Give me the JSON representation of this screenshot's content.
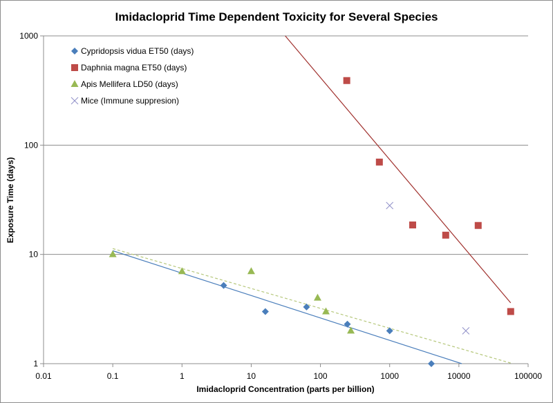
{
  "chart_data": {
    "type": "scatter",
    "title": "Imidacloprid Time Dependent Toxicity for Several Species",
    "xlabel": "Imidacloprid Concentration (parts per billion)",
    "ylabel": "Exposure Time (days)",
    "xscale": "log",
    "yscale": "log",
    "xlim": [
      0.01,
      100000
    ],
    "ylim": [
      1,
      1000
    ],
    "xticks": [
      "0.01",
      "0.1",
      "1",
      "10",
      "100",
      "1000",
      "10000",
      "100000"
    ],
    "yticks": [
      "1",
      "10",
      "100",
      "1000"
    ],
    "grid": "horizontal major",
    "legend_position": "top-left",
    "series": [
      {
        "name": "Cypridopsis vidua ET50 (days)",
        "marker": "diamond",
        "color": "#4a7ebb",
        "x": [
          4,
          16,
          63,
          245,
          1000,
          4000
        ],
        "y": [
          5.2,
          3,
          3.3,
          2.3,
          2,
          1
        ],
        "trendline": {
          "style": "solid",
          "color": "#4a7ebb",
          "x": [
            0.1,
            11000
          ],
          "y": [
            10.8,
            1
          ]
        }
      },
      {
        "name": "Daphnia magna ET50 (days)",
        "marker": "square",
        "color": "#be4b48",
        "x": [
          240,
          710,
          2150,
          6450,
          19000,
          56000
        ],
        "y": [
          390,
          70,
          18.6,
          15,
          18.4,
          3
        ],
        "trendline": {
          "style": "solid",
          "color": "#a0302d",
          "x": [
            31,
            56000
          ],
          "y": [
            1000,
            3.6
          ]
        }
      },
      {
        "name": "Apis Mellifera LD50 (days)",
        "marker": "triangle",
        "color": "#98b954",
        "x": [
          0.1,
          1,
          10,
          91,
          120,
          275
        ],
        "y": [
          10,
          7,
          7,
          4,
          3,
          2
        ],
        "trendline": {
          "style": "dashed",
          "color": "#b5c77a",
          "x": [
            0.1,
            60000
          ],
          "y": [
            11.3,
            1
          ]
        }
      },
      {
        "name": "Mice (Immune suppresion)",
        "marker": "x",
        "color": "#8f8fc8",
        "x": [
          1000,
          12600
        ],
        "y": [
          28,
          2
        ]
      }
    ]
  }
}
